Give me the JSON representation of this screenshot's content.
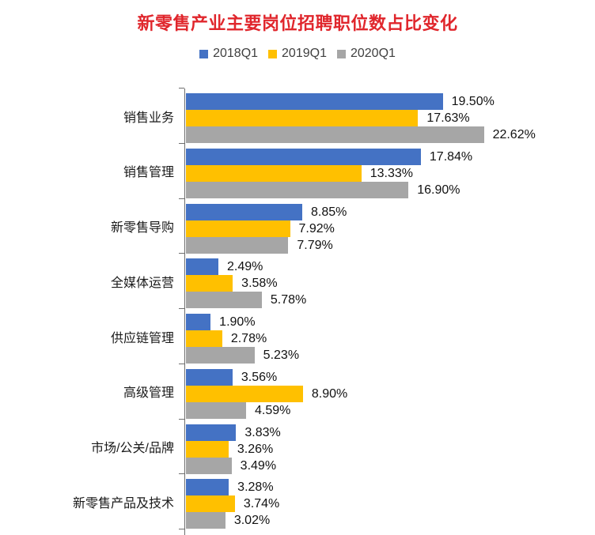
{
  "chart_data": {
    "type": "bar",
    "orientation": "horizontal",
    "title": "新零售产业主要岗位招聘职位数占比变化",
    "title_color": "#e0262c",
    "legend_position": "top",
    "legend_text_color": "#404040",
    "axis_color": "#6e6e6e",
    "grid": false,
    "value_label_format": "0.00%",
    "xlim": [
      0,
      23
    ],
    "categories": [
      "销售业务",
      "销售管理",
      "新零售导购",
      "全媒体运营",
      "供应链管理",
      "高级管理",
      "市场/公关/品牌",
      "新零售产品及技术"
    ],
    "series": [
      {
        "name": "2018Q1",
        "color": "#4472C4",
        "values": [
          19.5,
          17.84,
          8.85,
          2.49,
          1.9,
          3.56,
          3.83,
          3.28
        ]
      },
      {
        "name": "2019Q1",
        "color": "#FFC000",
        "values": [
          17.63,
          13.33,
          7.92,
          3.58,
          2.78,
          8.9,
          3.26,
          3.74
        ]
      },
      {
        "name": "2020Q1",
        "color": "#A6A6A6",
        "values": [
          22.62,
          16.9,
          7.79,
          5.78,
          5.23,
          4.59,
          3.49,
          3.02
        ]
      }
    ]
  }
}
